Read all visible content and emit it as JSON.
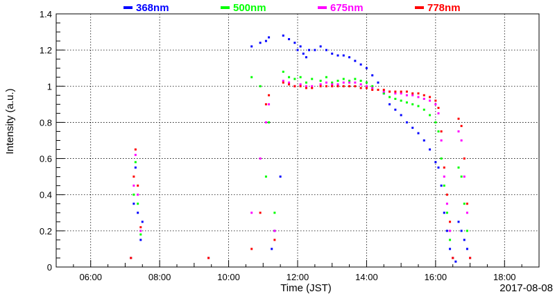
{
  "chart_data": {
    "type": "scatter",
    "title": "",
    "xlabel": "Time (JST)",
    "ylabel": "Intensity (a.u.)",
    "date_label": "2017-08-08",
    "xlim": [
      "05:00",
      "19:00"
    ],
    "ylim": [
      0,
      1.4
    ],
    "x_ticks": [
      "06:00",
      "08:00",
      "10:00",
      "12:00",
      "14:00",
      "16:00",
      "18:00"
    ],
    "y_ticks": [
      "0",
      "0.2",
      "0.4",
      "0.6",
      "0.8",
      "1",
      "1.2",
      "1.4"
    ],
    "grid": true,
    "legend_position": "top",
    "series": [
      {
        "name": "368nm",
        "color": "#0000ff",
        "points": [
          [
            "07:10",
            0.05
          ],
          [
            "07:15",
            0.35
          ],
          [
            "07:18",
            0.55
          ],
          [
            "07:22",
            0.3
          ],
          [
            "07:27",
            0.15
          ],
          [
            "07:30",
            0.25
          ],
          [
            "09:25",
            0.05
          ],
          [
            "10:40",
            1.22
          ],
          [
            "10:55",
            1.24
          ],
          [
            "11:05",
            1.25
          ],
          [
            "11:10",
            1.27
          ],
          [
            "11:15",
            0.1
          ],
          [
            "11:20",
            0.2
          ],
          [
            "11:30",
            0.5
          ],
          [
            "11:35",
            1.28
          ],
          [
            "11:45",
            1.26
          ],
          [
            "11:55",
            1.24
          ],
          [
            "12:00",
            1.2
          ],
          [
            "12:05",
            1.22
          ],
          [
            "12:10",
            1.18
          ],
          [
            "12:15",
            1.16
          ],
          [
            "12:20",
            1.2
          ],
          [
            "12:30",
            1.2
          ],
          [
            "12:40",
            1.22
          ],
          [
            "12:50",
            1.2
          ],
          [
            "13:00",
            1.18
          ],
          [
            "13:10",
            1.17
          ],
          [
            "13:20",
            1.17
          ],
          [
            "13:30",
            1.16
          ],
          [
            "13:40",
            1.14
          ],
          [
            "13:50",
            1.12
          ],
          [
            "14:00",
            1.1
          ],
          [
            "14:10",
            1.06
          ],
          [
            "14:20",
            1.02
          ],
          [
            "14:30",
            0.96
          ],
          [
            "14:40",
            0.9
          ],
          [
            "14:50",
            0.87
          ],
          [
            "15:00",
            0.84
          ],
          [
            "15:10",
            0.8
          ],
          [
            "15:20",
            0.77
          ],
          [
            "15:30",
            0.74
          ],
          [
            "15:40",
            0.7
          ],
          [
            "15:50",
            0.65
          ],
          [
            "16:00",
            0.58
          ],
          [
            "16:05",
            0.55
          ],
          [
            "16:10",
            0.45
          ],
          [
            "16:15",
            0.3
          ],
          [
            "16:20",
            0.2
          ],
          [
            "16:25",
            0.1
          ],
          [
            "16:30",
            0.05
          ],
          [
            "16:35",
            0.03
          ],
          [
            "16:40",
            0.25
          ],
          [
            "16:45",
            0.2
          ],
          [
            "16:50",
            0.15
          ],
          [
            "16:55",
            0.1
          ],
          [
            "17:00",
            0.05
          ]
        ]
      },
      {
        "name": "500nm",
        "color": "#00ff00",
        "points": [
          [
            "07:10",
            0.05
          ],
          [
            "07:15",
            0.4
          ],
          [
            "07:18",
            0.58
          ],
          [
            "07:22",
            0.35
          ],
          [
            "07:27",
            0.18
          ],
          [
            "09:25",
            0.05
          ],
          [
            "10:40",
            1.05
          ],
          [
            "10:55",
            1.0
          ],
          [
            "11:05",
            0.5
          ],
          [
            "11:10",
            0.8
          ],
          [
            "11:20",
            0.3
          ],
          [
            "11:35",
            1.08
          ],
          [
            "11:45",
            1.05
          ],
          [
            "11:55",
            1.04
          ],
          [
            "12:05",
            1.05
          ],
          [
            "12:15",
            1.02
          ],
          [
            "12:25",
            1.04
          ],
          [
            "12:40",
            1.03
          ],
          [
            "12:50",
            1.05
          ],
          [
            "13:00",
            1.02
          ],
          [
            "13:10",
            1.03
          ],
          [
            "13:20",
            1.04
          ],
          [
            "13:30",
            1.03
          ],
          [
            "13:40",
            1.04
          ],
          [
            "13:50",
            1.03
          ],
          [
            "14:00",
            1.02
          ],
          [
            "14:10",
            1.0
          ],
          [
            "14:20",
            0.98
          ],
          [
            "14:30",
            0.96
          ],
          [
            "14:40",
            0.94
          ],
          [
            "14:50",
            0.93
          ],
          [
            "15:00",
            0.92
          ],
          [
            "15:10",
            0.91
          ],
          [
            "15:20",
            0.9
          ],
          [
            "15:30",
            0.89
          ],
          [
            "15:40",
            0.87
          ],
          [
            "15:50",
            0.84
          ],
          [
            "16:00",
            0.8
          ],
          [
            "16:05",
            0.75
          ],
          [
            "16:10",
            0.6
          ],
          [
            "16:15",
            0.45
          ],
          [
            "16:20",
            0.3
          ],
          [
            "16:25",
            0.15
          ],
          [
            "16:30",
            0.05
          ],
          [
            "16:40",
            0.55
          ],
          [
            "16:45",
            0.5
          ],
          [
            "16:50",
            0.35
          ],
          [
            "16:55",
            0.2
          ],
          [
            "17:00",
            0.05
          ]
        ]
      },
      {
        "name": "675nm",
        "color": "#ff00ff",
        "points": [
          [
            "07:10",
            0.05
          ],
          [
            "07:15",
            0.45
          ],
          [
            "07:18",
            0.62
          ],
          [
            "07:22",
            0.4
          ],
          [
            "07:27",
            0.2
          ],
          [
            "09:25",
            0.05
          ],
          [
            "10:40",
            0.3
          ],
          [
            "10:55",
            0.6
          ],
          [
            "11:05",
            0.8
          ],
          [
            "11:10",
            0.9
          ],
          [
            "11:20",
            0.2
          ],
          [
            "11:35",
            1.03
          ],
          [
            "11:45",
            1.02
          ],
          [
            "11:55",
            1.0
          ],
          [
            "12:05",
            1.01
          ],
          [
            "12:15",
            1.0
          ],
          [
            "12:25",
            1.0
          ],
          [
            "12:40",
            1.01
          ],
          [
            "12:50",
            1.02
          ],
          [
            "13:00",
            1.01
          ],
          [
            "13:10",
            1.01
          ],
          [
            "13:20",
            1.02
          ],
          [
            "13:30",
            1.02
          ],
          [
            "13:40",
            1.02
          ],
          [
            "13:50",
            1.01
          ],
          [
            "14:00",
            1.0
          ],
          [
            "14:10",
            0.99
          ],
          [
            "14:20",
            0.98
          ],
          [
            "14:30",
            0.97
          ],
          [
            "14:40",
            0.97
          ],
          [
            "14:50",
            0.96
          ],
          [
            "15:00",
            0.96
          ],
          [
            "15:10",
            0.95
          ],
          [
            "15:20",
            0.95
          ],
          [
            "15:30",
            0.94
          ],
          [
            "15:40",
            0.93
          ],
          [
            "15:50",
            0.92
          ],
          [
            "16:00",
            0.9
          ],
          [
            "16:05",
            0.85
          ],
          [
            "16:10",
            0.7
          ],
          [
            "16:15",
            0.5
          ],
          [
            "16:20",
            0.35
          ],
          [
            "16:25",
            0.2
          ],
          [
            "16:30",
            0.05
          ],
          [
            "16:40",
            0.75
          ],
          [
            "16:45",
            0.7
          ],
          [
            "16:50",
            0.5
          ],
          [
            "16:55",
            0.3
          ],
          [
            "17:00",
            0.05
          ]
        ]
      },
      {
        "name": "778nm",
        "color": "#ff0000",
        "points": [
          [
            "07:10",
            0.05
          ],
          [
            "07:15",
            0.5
          ],
          [
            "07:18",
            0.65
          ],
          [
            "07:22",
            0.45
          ],
          [
            "07:27",
            0.22
          ],
          [
            "09:25",
            0.05
          ],
          [
            "10:40",
            0.1
          ],
          [
            "10:55",
            0.3
          ],
          [
            "11:05",
            0.9
          ],
          [
            "11:10",
            0.95
          ],
          [
            "11:20",
            0.15
          ],
          [
            "11:35",
            1.02
          ],
          [
            "11:45",
            1.01
          ],
          [
            "11:55",
            1.0
          ],
          [
            "12:05",
            1.0
          ],
          [
            "12:15",
            0.99
          ],
          [
            "12:25",
            0.99
          ],
          [
            "12:40",
            1.0
          ],
          [
            "12:50",
            1.0
          ],
          [
            "13:00",
            1.0
          ],
          [
            "13:10",
            1.0
          ],
          [
            "13:20",
            1.0
          ],
          [
            "13:30",
            1.0
          ],
          [
            "13:40",
            1.0
          ],
          [
            "13:50",
            0.99
          ],
          [
            "14:00",
            0.99
          ],
          [
            "14:10",
            0.98
          ],
          [
            "14:20",
            0.98
          ],
          [
            "14:30",
            0.98
          ],
          [
            "14:40",
            0.97
          ],
          [
            "14:50",
            0.97
          ],
          [
            "15:00",
            0.97
          ],
          [
            "15:10",
            0.97
          ],
          [
            "15:20",
            0.96
          ],
          [
            "15:30",
            0.96
          ],
          [
            "15:40",
            0.95
          ],
          [
            "15:50",
            0.94
          ],
          [
            "16:00",
            0.92
          ],
          [
            "16:05",
            0.88
          ],
          [
            "16:10",
            0.75
          ],
          [
            "16:15",
            0.55
          ],
          [
            "16:20",
            0.4
          ],
          [
            "16:25",
            0.25
          ],
          [
            "16:30",
            0.05
          ],
          [
            "16:40",
            0.82
          ],
          [
            "16:45",
            0.78
          ],
          [
            "16:50",
            0.6
          ],
          [
            "16:55",
            0.35
          ],
          [
            "17:00",
            0.05
          ]
        ]
      }
    ]
  }
}
